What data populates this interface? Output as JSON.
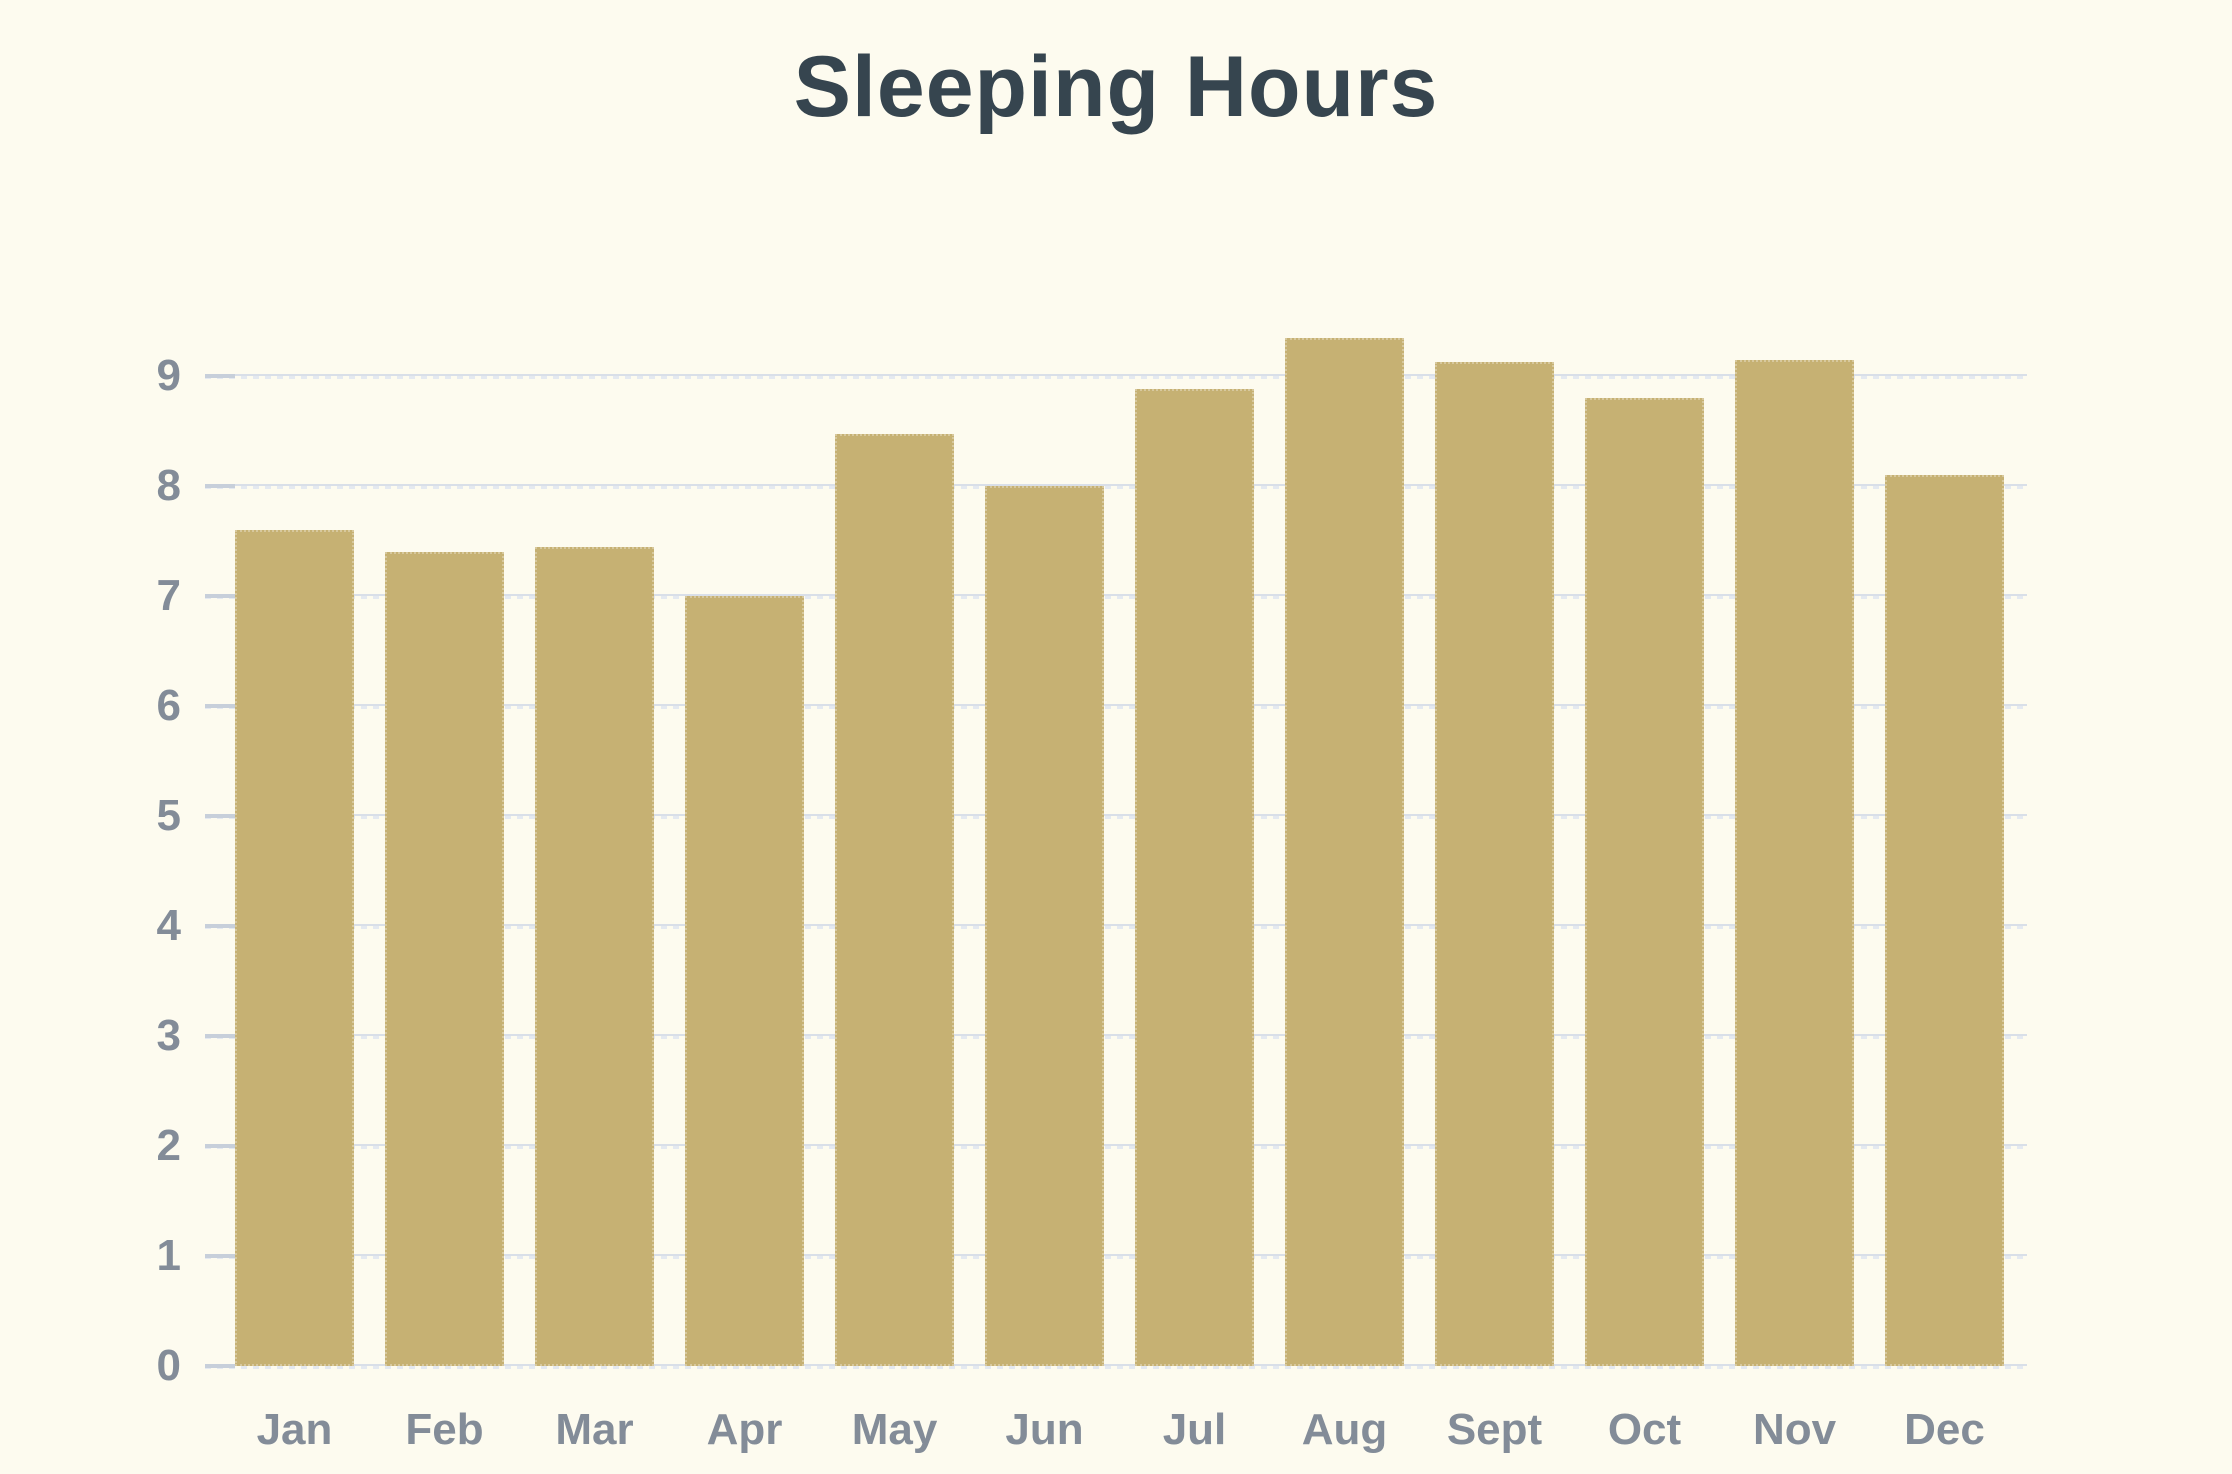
{
  "page": {
    "background": "#FDFBEF"
  },
  "chart_data": {
    "type": "bar",
    "title": "Sleeping Hours",
    "categories": [
      "Jan",
      "Feb",
      "Mar",
      "Apr",
      "May",
      "Jun",
      "Jul",
      "Aug",
      "Sept",
      "Oct",
      "Nov",
      "Dec"
    ],
    "values": [
      7.6,
      7.4,
      7.45,
      7.0,
      8.47,
      8.0,
      8.88,
      9.35,
      9.13,
      8.8,
      9.15,
      8.1
    ],
    "xlabel": "",
    "ylabel": "",
    "ylim": [
      0,
      9
    ],
    "yticks": [
      0,
      1,
      2,
      3,
      4,
      5,
      6,
      7,
      8,
      9
    ],
    "grid": "horizontal-only",
    "legend": "none",
    "bar_color": "#C6B173",
    "title_color": "#36454F",
    "axis_label_color": "#838C98",
    "gridline_color": "#D9DFE8",
    "gridline_dash_color": "#E4E9F0",
    "tick_color": "#C7CFDA"
  }
}
